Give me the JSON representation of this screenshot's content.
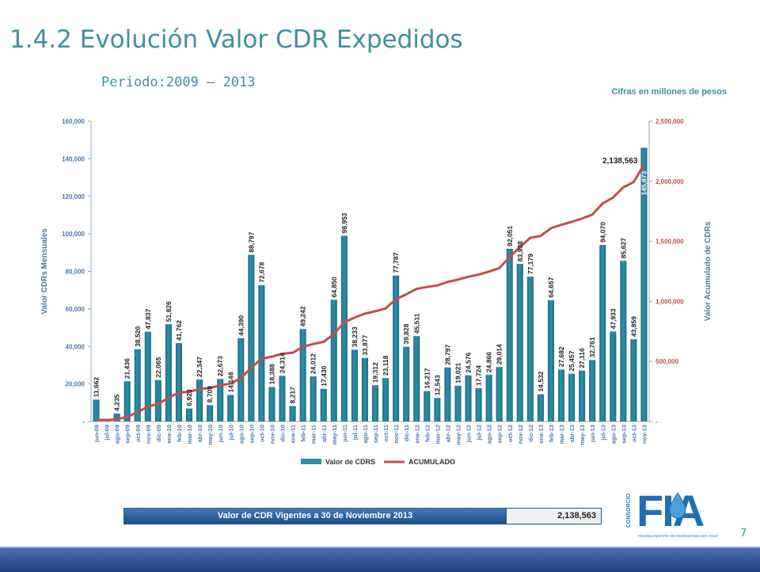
{
  "header": {
    "title": "1.4.2 Evolución Valor CDR Expedidos",
    "period": "Periodo:2009 – 2013",
    "units_note": "Cifras en millones de pesos"
  },
  "summary": {
    "label": "Valor de CDR Vigentes a 30 de Noviembre 2013",
    "value": "2,138,563"
  },
  "logo": {
    "side_text": "CONSORCIO",
    "letters": "FIA",
    "subtitle": "FINANCIAMIENTO DE INVERSIONES EN AGUA"
  },
  "page_number": "7",
  "colors": {
    "bar": "#2e8fa8",
    "line": "#c0504d",
    "title": "#3f8fa0",
    "axis_left": "#4a78a8",
    "axis_right": "#c0504d"
  },
  "chart_data": {
    "type": "bar",
    "categories": [
      "jun-09",
      "jul-09",
      "ago-09",
      "sep-09",
      "oct-09",
      "nov-09",
      "dic-09",
      "ene-10",
      "feb-10",
      "mar-10",
      "abr-10",
      "may-10",
      "jun-10",
      "jul-10",
      "ago-10",
      "sep-10",
      "oct-10",
      "nov-10",
      "dic-10",
      "ene-11",
      "feb-11",
      "mar-11",
      "abr-11",
      "may-11",
      "jun-11",
      "jul-11",
      "ago-11",
      "sep-11",
      "oct-11",
      "nov-11",
      "dic-11",
      "ene-12",
      "feb-12",
      "mar-12",
      "abr-12",
      "may-12",
      "jun-12",
      "jul-12",
      "ago-12",
      "sep-12",
      "oct-12",
      "nov-12",
      "dic-12",
      "ene-13",
      "feb-13",
      "mar-13",
      "abr-13",
      "may-13",
      "jun-13",
      "jul-13",
      "ago-13",
      "sep-13",
      "oct-13",
      "nov-13"
    ],
    "series": [
      {
        "name": "Valor de CDRS",
        "axis": "left",
        "values": [
          11662,
          1000,
          4235,
          21436,
          38520,
          47837,
          22065,
          51826,
          41762,
          6923,
          22347,
          8709,
          22673,
          14148,
          44390,
          88797,
          72678,
          18388,
          24314,
          8217,
          49242,
          24012,
          17430,
          64850,
          98953,
          38233,
          33877,
          19312,
          23118,
          77787,
          39828,
          45511,
          16217,
          12543,
          28797,
          19021,
          24576,
          17724,
          24866,
          29014,
          92051,
          83938,
          77179,
          14532,
          64657,
          27682,
          25457,
          27116,
          32761,
          94070,
          47933,
          85627,
          43859,
          145873
        ],
        "labels": [
          "11,662",
          "",
          "4,235",
          "21,436",
          "38,520",
          "47,837",
          "22,065",
          "51,826",
          "41,762",
          "6,923",
          "22,347",
          "8,709",
          "22,673",
          "14,148",
          "44,390",
          "88,797",
          "72,678",
          "18,388",
          "24,314",
          "8,217",
          "49,242",
          "24,012",
          "17,430",
          "64,850",
          "98,953",
          "38,233",
          "33,877",
          "19,312",
          "23,118",
          "77,787",
          "39,828",
          "45,511",
          "16,217",
          "12,543",
          "28,797",
          "19,021",
          "24,576",
          "17,724",
          "24,866",
          "29,014",
          "92,051",
          "83,938",
          "77,179",
          "14,532",
          "64,657",
          "27,682",
          "25,457",
          "27,116",
          "32,761",
          "94,070",
          "47,933",
          "85,627",
          "43,859",
          "145,873"
        ]
      },
      {
        "name": "ACUMULADO",
        "axis": "right",
        "type": "line",
        "values": [
          11662,
          12662,
          16897,
          38333,
          76853,
          124690,
          146755,
          198581,
          240343,
          247266,
          269613,
          278322,
          300995,
          315143,
          359533,
          448330,
          521008,
          539396,
          563710,
          571927,
          621169,
          645181,
          662611,
          727461,
          826414,
          864647,
          898524,
          917836,
          940954,
          1018741,
          1058569,
          1104080,
          1120297,
          1132840,
          1161637,
          1180658,
          1205234,
          1222958,
          1247824,
          1276838,
          1368889,
          1452827,
          1530006,
          1544538,
          1609195,
          1636877,
          1662334,
          1689450,
          1722211,
          1816281,
          1864214,
          1949841,
          1993700,
          2138563
        ],
        "end_label": "2,138,563"
      }
    ],
    "y_left": {
      "label": "Valor CDRs Mensuales",
      "min": 0,
      "max": 160000,
      "ticks": [
        "-",
        "20,000",
        "40,000",
        "60,000",
        "80,000",
        "100,000",
        "120,000",
        "140,000",
        "160,000"
      ]
    },
    "y_right": {
      "label": "Valor Acumulado de CDRs",
      "min": 0,
      "max": 2500000,
      "ticks": [
        "-",
        "500,000",
        "1,000,000",
        "1,500,000",
        "2,000,000",
        "2,500,000"
      ]
    },
    "legend": {
      "position": "bottom"
    }
  }
}
